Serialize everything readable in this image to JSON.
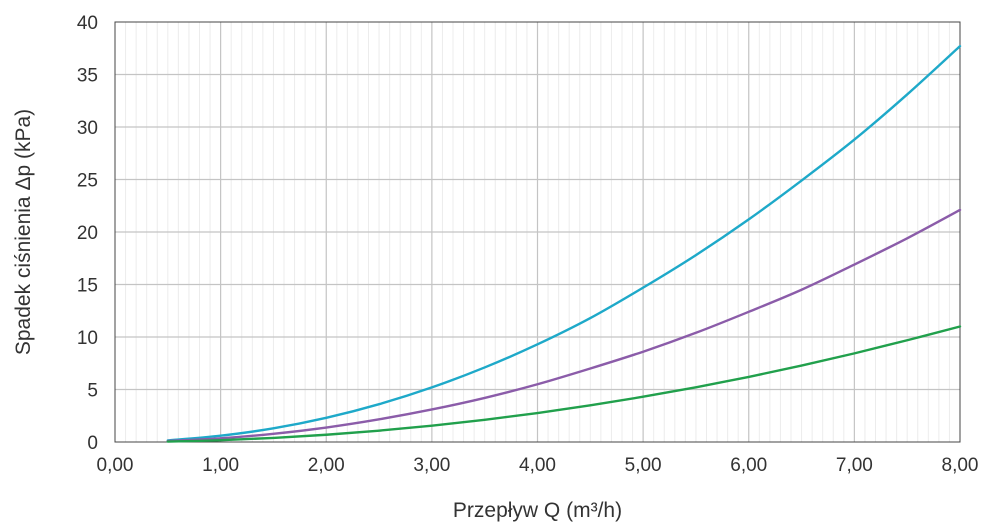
{
  "chart_data": {
    "type": "line",
    "title": "",
    "xlabel": "Przepływ Q (m³/h)",
    "ylabel": "Spadek ciśnienia Δp (kPa)",
    "xlim": [
      0,
      8
    ],
    "ylim": [
      0,
      40
    ],
    "x_ticks": [
      "0,00",
      "1,00",
      "2,00",
      "3,00",
      "4,00",
      "5,00",
      "6,00",
      "7,00",
      "8,00"
    ],
    "y_ticks": [
      "0",
      "5",
      "10",
      "15",
      "20",
      "25",
      "30",
      "35",
      "40"
    ],
    "grid": true,
    "legend": "none",
    "series": [
      {
        "color": "#1ea9c9",
        "x": [
          0.5,
          1,
          1.5,
          2,
          2.5,
          3,
          3.5,
          4,
          4.5,
          5,
          5.5,
          6,
          6.5,
          7,
          7.5,
          8
        ],
        "values": [
          0.15,
          0.6,
          1.3,
          2.3,
          3.6,
          5.2,
          7.1,
          9.3,
          11.8,
          14.7,
          17.8,
          21.2,
          24.9,
          28.8,
          33.1,
          37.7
        ]
      },
      {
        "color": "#8b5ca9",
        "x": [
          0.5,
          1,
          1.5,
          2,
          2.5,
          3,
          3.5,
          4,
          4.5,
          5,
          5.5,
          6,
          6.5,
          7,
          7.5,
          8
        ],
        "values": [
          0.09,
          0.35,
          0.78,
          1.38,
          2.16,
          3.1,
          4.2,
          5.5,
          7.0,
          8.6,
          10.4,
          12.4,
          14.5,
          16.9,
          19.4,
          22.1
        ]
      },
      {
        "color": "#21a04c",
        "x": [
          0.5,
          1,
          1.5,
          2,
          2.5,
          3,
          3.5,
          4,
          4.5,
          5,
          5.5,
          6,
          6.5,
          7,
          7.5,
          8
        ],
        "values": [
          0.04,
          0.17,
          0.39,
          0.69,
          1.08,
          1.55,
          2.11,
          2.76,
          3.49,
          4.31,
          5.21,
          6.2,
          7.28,
          8.44,
          9.69,
          11.0
        ]
      }
    ]
  }
}
